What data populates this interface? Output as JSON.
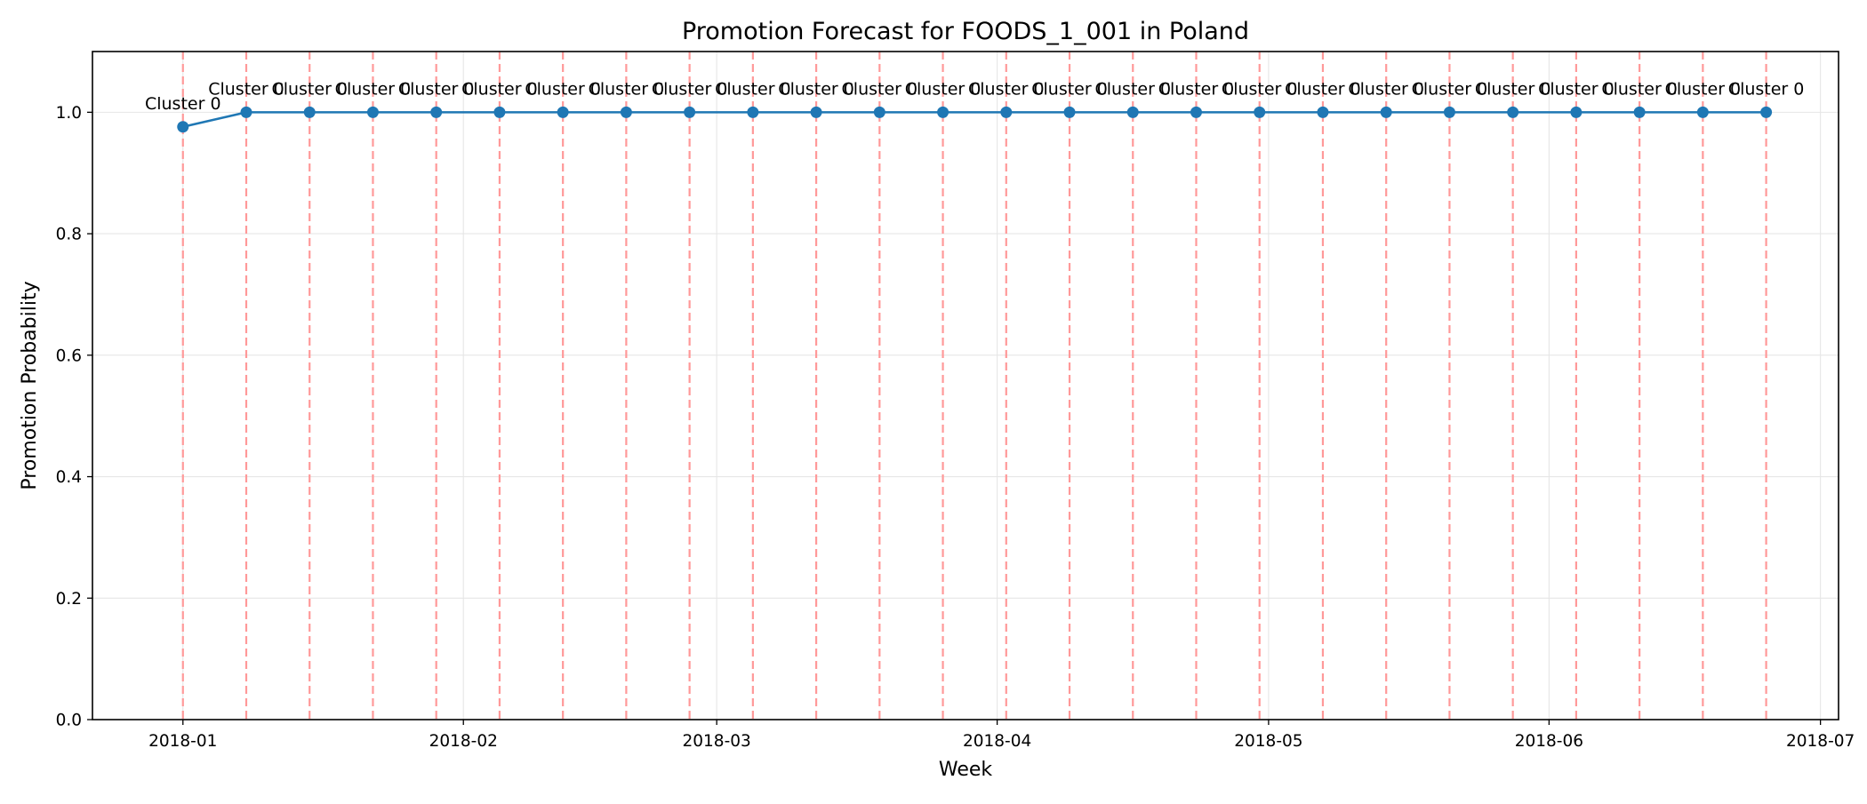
{
  "chart_data": {
    "type": "line",
    "title": "Promotion Forecast for FOODS_1_001 in Poland",
    "xlabel": "Week",
    "ylabel": "Promotion Probability",
    "ylim": [
      0.0,
      1.1
    ],
    "xlim": [
      "2017-12-22",
      "2018-07-03"
    ],
    "y_ticks": [
      "0.0",
      "0.2",
      "0.4",
      "0.6",
      "0.8",
      "1.0"
    ],
    "x_ticks": [
      "2018-01",
      "2018-02",
      "2018-03",
      "2018-04",
      "2018-05",
      "2018-06",
      "2018-07"
    ],
    "grid": true,
    "legend": "none",
    "x": [
      "2018-01-01",
      "2018-01-08",
      "2018-01-15",
      "2018-01-22",
      "2018-01-29",
      "2018-02-05",
      "2018-02-12",
      "2018-02-19",
      "2018-02-26",
      "2018-03-05",
      "2018-03-12",
      "2018-03-19",
      "2018-03-26",
      "2018-04-02",
      "2018-04-09",
      "2018-04-16",
      "2018-04-23",
      "2018-04-30",
      "2018-05-07",
      "2018-05-14",
      "2018-05-21",
      "2018-05-28",
      "2018-06-04",
      "2018-06-11",
      "2018-06-18",
      "2018-06-25"
    ],
    "series": [
      {
        "values": [
          0.976,
          1.0,
          1.0,
          1.0,
          1.0,
          1.0,
          1.0,
          1.0,
          1.0,
          1.0,
          1.0,
          1.0,
          1.0,
          1.0,
          1.0,
          1.0,
          1.0,
          1.0,
          1.0,
          1.0,
          1.0,
          1.0,
          1.0,
          1.0,
          1.0,
          1.0
        ]
      }
    ],
    "annotations": [
      "Cluster 0",
      "Cluster 0",
      "Cluster 0",
      "Cluster 0",
      "Cluster 0",
      "Cluster 0",
      "Cluster 0",
      "Cluster 0",
      "Cluster 0",
      "Cluster 0",
      "Cluster 0",
      "Cluster 0",
      "Cluster 0",
      "Cluster 0",
      "Cluster 0",
      "Cluster 0",
      "Cluster 0",
      "Cluster 0",
      "Cluster 0",
      "Cluster 0",
      "Cluster 0",
      "Cluster 0",
      "Cluster 0",
      "Cluster 0",
      "Cluster 0",
      "Cluster 0"
    ],
    "vertical_lines": "dashed at each forecast week",
    "colors": {
      "line": "#1f77b4",
      "vlines": "#ff9999",
      "grid": "#e6e6e6"
    }
  }
}
